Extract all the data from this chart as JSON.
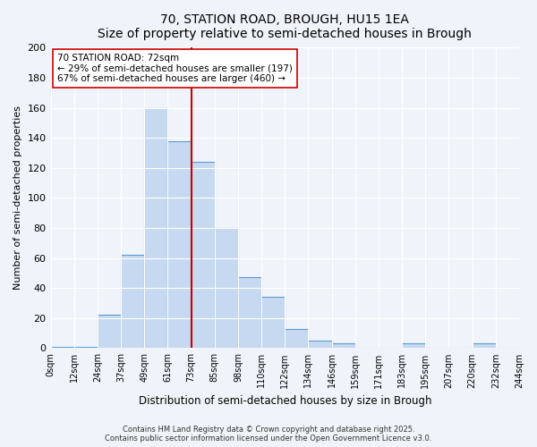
{
  "title": "70, STATION ROAD, BROUGH, HU15 1EA",
  "subtitle": "Size of property relative to semi-detached houses in Brough",
  "xlabel": "Distribution of semi-detached houses by size in Brough",
  "ylabel": "Number of semi-detached properties",
  "bin_labels": [
    "0sqm",
    "12sqm",
    "24sqm",
    "37sqm",
    "49sqm",
    "61sqm",
    "73sqm",
    "85sqm",
    "98sqm",
    "110sqm",
    "122sqm",
    "134sqm",
    "146sqm",
    "159sqm",
    "171sqm",
    "183sqm",
    "195sqm",
    "207sqm",
    "220sqm",
    "232sqm",
    "244sqm"
  ],
  "bar_values": [
    1,
    1,
    22,
    62,
    160,
    138,
    124,
    80,
    47,
    34,
    13,
    5,
    3,
    0,
    0,
    3,
    0,
    0,
    3,
    0
  ],
  "bar_color": "#c6d9f0",
  "bar_edge_color": "#5b9bd5",
  "highlight_line_color": "#cc0000",
  "highlight_bar_index": 6,
  "annotation_title": "70 STATION ROAD: 72sqm",
  "annotation_line1": "← 29% of semi-detached houses are smaller (197)",
  "annotation_line2": "67% of semi-detached houses are larger (460) →",
  "annotation_box_color": "#ffffff",
  "annotation_box_edge": "#cc0000",
  "ylim": [
    0,
    200
  ],
  "yticks": [
    0,
    20,
    40,
    60,
    80,
    100,
    120,
    140,
    160,
    180,
    200
  ],
  "footer1": "Contains HM Land Registry data © Crown copyright and database right 2025.",
  "footer2": "Contains public sector information licensed under the Open Government Licence v3.0.",
  "bg_color": "#f0f4fa"
}
